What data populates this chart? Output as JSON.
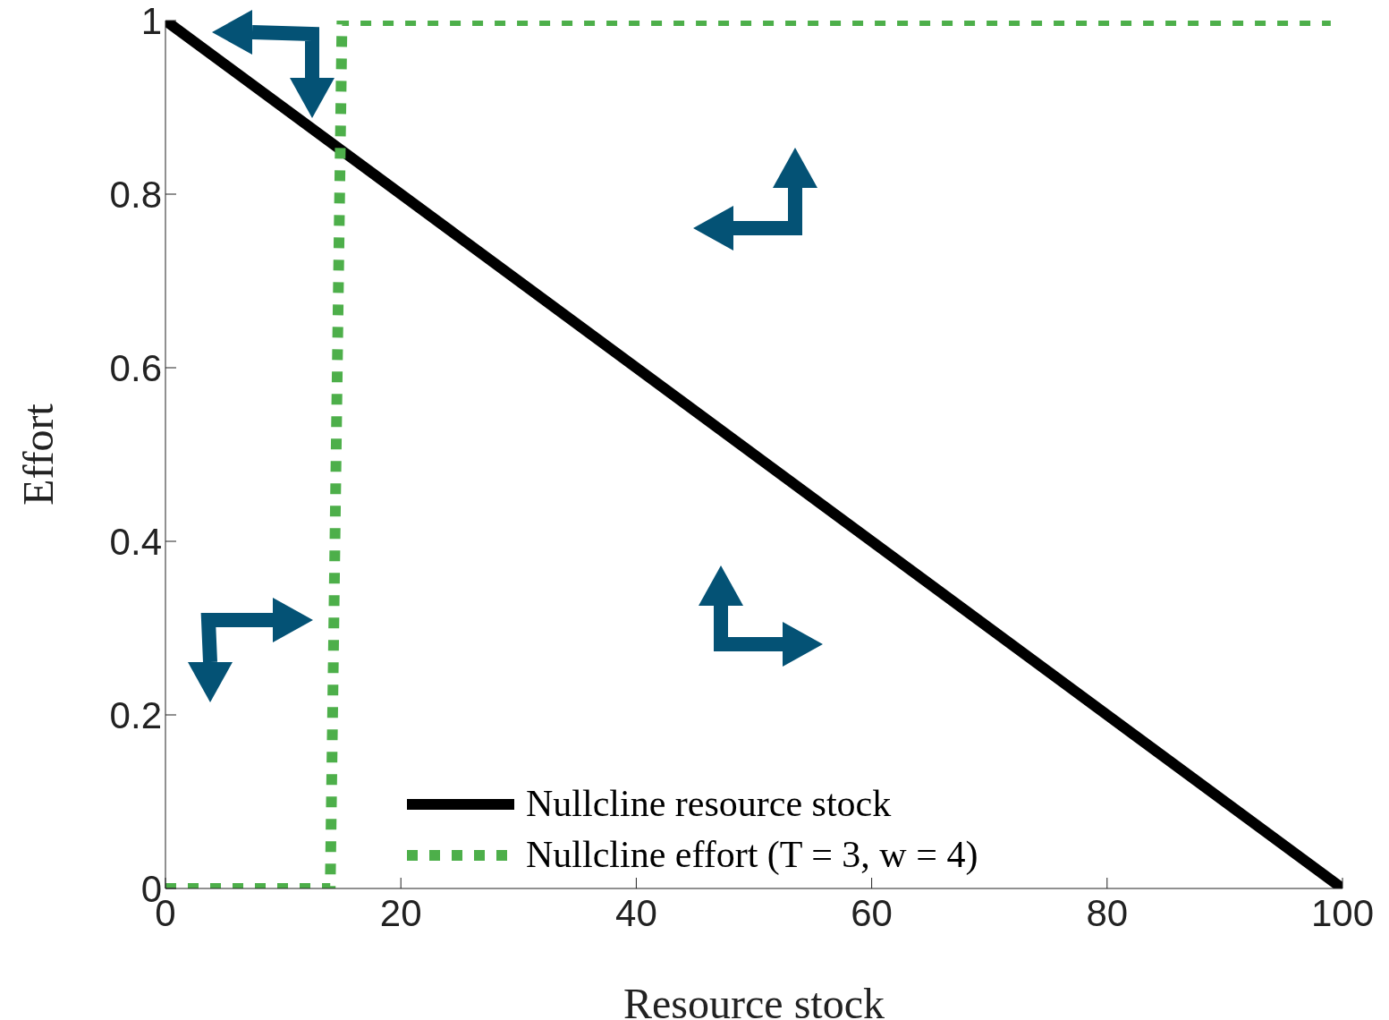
{
  "chart_data": {
    "type": "line",
    "xlabel": "Resource stock",
    "ylabel": "Effort",
    "xlim": [
      0,
      100
    ],
    "xticks": [
      0,
      20,
      40,
      60,
      80,
      100
    ],
    "ylim": [
      0,
      1
    ],
    "yticks": [
      0,
      0.2,
      0.4,
      0.6,
      0.8,
      1
    ],
    "grid": false,
    "legend": "bottom",
    "marker": "none",
    "series": [
      {
        "name": "Nullcline resource stock",
        "color": "#000000",
        "line_style": "solid",
        "x": [
          0,
          100
        ],
        "values": [
          1,
          0
        ]
      },
      {
        "name": "Nullcline effort (T = 3, w = 4)",
        "color": "#4daf4a",
        "line_style": "dotted",
        "x": [
          0,
          14,
          15,
          99
        ],
        "values": [
          0,
          0,
          1,
          1
        ]
      }
    ]
  }
}
